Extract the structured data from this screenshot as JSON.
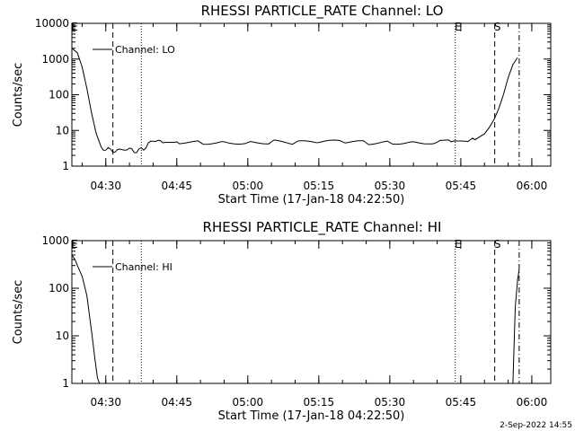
{
  "chart_data": [
    {
      "type": "line",
      "title": "RHESSI PARTICLE_RATE Channel: LO",
      "xlabel": "Start Time (17-Jan-18 04:22:50)",
      "ylabel": "Counts/sec",
      "yscale": "log",
      "ylim": [
        1,
        10000
      ],
      "xlim": [
        "04:22:50",
        "06:04:00"
      ],
      "x_ticks": [
        "04:30",
        "04:45",
        "05:00",
        "05:15",
        "05:30",
        "05:45",
        "06:00"
      ],
      "y_ticks": [
        "1",
        "10",
        "100",
        "1000",
        "10000"
      ],
      "legend": "top-left",
      "series": [
        {
          "name": "Channel: LO",
          "x": [
            "04:22:50",
            "04:24:00",
            "04:25:00",
            "04:26:00",
            "04:27:00",
            "04:28:00",
            "04:29:00",
            "04:30:00",
            "04:31:00",
            "04:32:00",
            "04:33:00",
            "04:34:00",
            "04:35:00",
            "04:36:00",
            "04:37:00",
            "04:38:00",
            "04:39:00",
            "04:40:00",
            "04:42:00",
            "04:45:00",
            "04:50:00",
            "04:55:00",
            "05:00:00",
            "05:05:00",
            "05:10:00",
            "05:15:00",
            "05:20:00",
            "05:25:00",
            "05:30:00",
            "05:35:00",
            "05:40:00",
            "05:43:00",
            "05:46:00",
            "05:48:00",
            "05:50:00",
            "05:51:00",
            "05:52:00",
            "05:53:00",
            "05:54:00",
            "05:55:00",
            "05:56:00",
            "05:57:00"
          ],
          "y": [
            2000,
            1500,
            600,
            150,
            30,
            8,
            3.5,
            2.8,
            3,
            2.5,
            3,
            2.8,
            3.2,
            2.4,
            3,
            2.8,
            4.5,
            5,
            4.5,
            4.8,
            4.6,
            4.8,
            4.6,
            4.8,
            4.5,
            4.6,
            4.8,
            4.5,
            4.6,
            4.8,
            4.7,
            4.8,
            5,
            5.5,
            8,
            12,
            20,
            40,
            100,
            300,
            700,
            1100
          ]
        }
      ],
      "markers": [
        {
          "label": "E",
          "time": "04:22:50",
          "style": "dotted"
        },
        {
          "label": "",
          "time": "04:31:30",
          "style": "dashed"
        },
        {
          "label": "",
          "time": "04:37:30",
          "style": "dotted"
        },
        {
          "label": "E",
          "time": "05:43:50",
          "style": "dotted"
        },
        {
          "label": "S",
          "time": "05:52:10",
          "style": "dashed"
        },
        {
          "label": "",
          "time": "05:57:20",
          "style": "dash-dot"
        }
      ]
    },
    {
      "type": "line",
      "title": "RHESSI PARTICLE_RATE Channel: HI",
      "xlabel": "Start Time (17-Jan-18 04:22:50)",
      "ylabel": "Counts/sec",
      "yscale": "log",
      "ylim": [
        1,
        1000
      ],
      "xlim": [
        "04:22:50",
        "06:04:00"
      ],
      "x_ticks": [
        "04:30",
        "04:45",
        "05:00",
        "05:15",
        "05:30",
        "05:45",
        "06:00"
      ],
      "y_ticks": [
        "1",
        "10",
        "100",
        "1000"
      ],
      "legend": "top-left",
      "series": [
        {
          "name": "Channel: HI",
          "x": [
            "04:22:50",
            "04:23:30",
            "04:24:00",
            "04:25:00",
            "04:26:00",
            "04:27:00",
            "04:27:45",
            "04:28:15",
            "04:28:40",
            "05:56:00",
            "05:56:30",
            "05:57:00",
            "05:57:20"
          ],
          "y": [
            500,
            400,
            300,
            180,
            70,
            12,
            3,
            1.3,
            1,
            1,
            40,
            150,
            250
          ]
        }
      ],
      "markers": [
        {
          "label": "E",
          "time": "04:22:50",
          "style": "dotted"
        },
        {
          "label": "",
          "time": "04:31:30",
          "style": "dashed"
        },
        {
          "label": "",
          "time": "04:37:30",
          "style": "dotted"
        },
        {
          "label": "E",
          "time": "05:43:50",
          "style": "dotted"
        },
        {
          "label": "S",
          "time": "05:52:10",
          "style": "dashed"
        },
        {
          "label": "",
          "time": "05:57:20",
          "style": "dash-dot"
        }
      ]
    }
  ],
  "footer": {
    "timestamp": "2-Sep-2022 14:55"
  }
}
